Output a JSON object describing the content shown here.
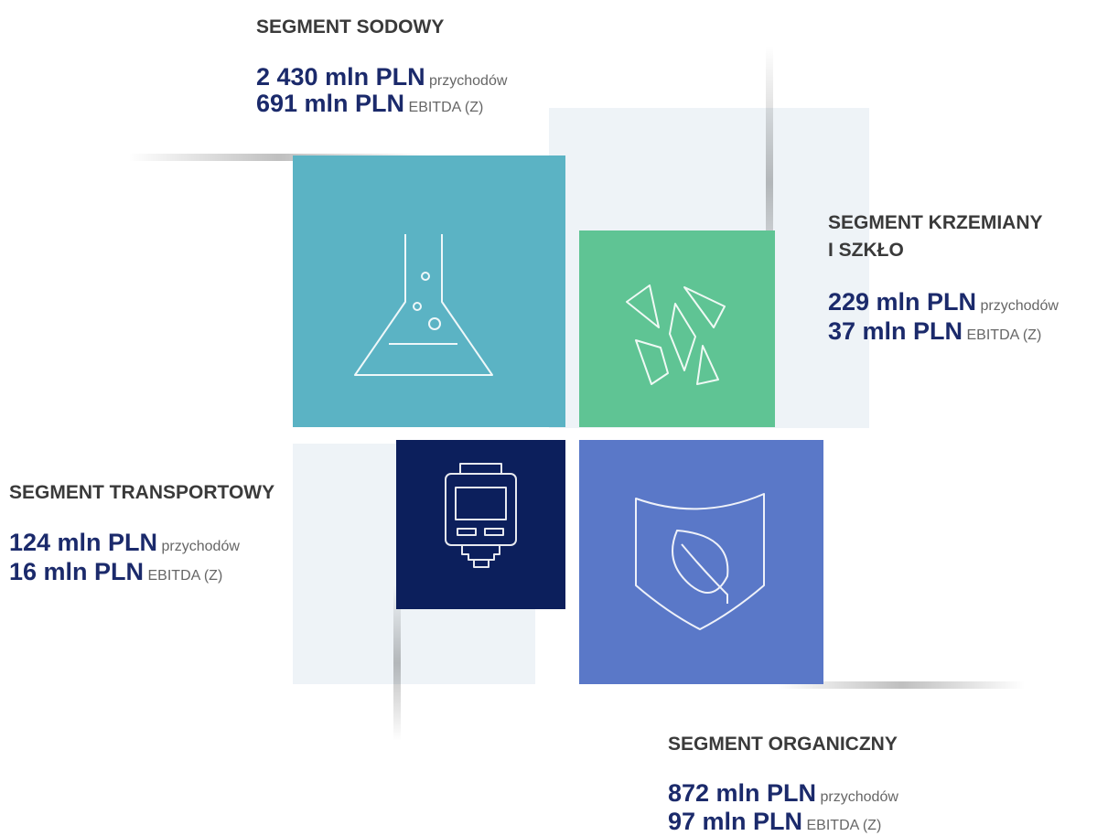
{
  "segments": [
    {
      "title": [
        "SEGMENT SODOWY"
      ],
      "revenue": "2 430 mln PLN",
      "ebitda": "691 mln PLN"
    },
    {
      "title": [
        "SEGMENT KRZEMIANY",
        "I SZKŁO"
      ],
      "revenue": "229 mln PLN",
      "ebitda": "37 mln PLN"
    },
    {
      "title": [
        "SEGMENT TRANSPORTOWY"
      ],
      "revenue": "124 mln PLN",
      "ebitda": "16 mln PLN"
    },
    {
      "title": [
        "SEGMENT ORGANICZNY"
      ],
      "revenue": "872 mln PLN",
      "ebitda": "97 mln PLN"
    }
  ],
  "revenue_label": "przychodów",
  "ebitda_label": "EBITDA (Z)"
}
